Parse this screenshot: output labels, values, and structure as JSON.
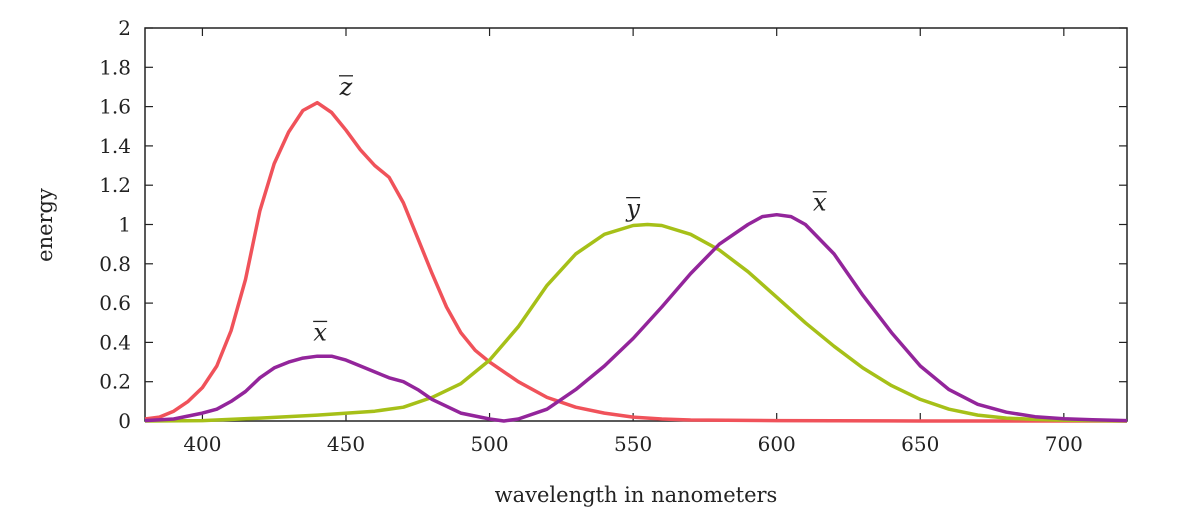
{
  "chart_data": {
    "type": "line",
    "title": "",
    "xlabel": "wavelength in nanometers",
    "ylabel": "energy",
    "xlim": [
      380,
      722
    ],
    "ylim": [
      0,
      2
    ],
    "xticks": [
      400,
      450,
      500,
      550,
      600,
      650,
      700
    ],
    "yticks": [
      0,
      0.2,
      0.4,
      0.6,
      0.8,
      1,
      1.2,
      1.4,
      1.6,
      1.8,
      2
    ],
    "ytick_labels": [
      "0",
      "0.2",
      "0.4",
      "0.6",
      "0.8",
      "1",
      "1.2",
      "1.4",
      "1.6",
      "1.8",
      "2"
    ],
    "grid": false,
    "series": [
      {
        "name": "z-bar",
        "label": "z",
        "color": "#f0525a",
        "x": [
          380,
          385,
          390,
          395,
          400,
          405,
          410,
          415,
          420,
          425,
          430,
          435,
          440,
          445,
          450,
          455,
          460,
          465,
          470,
          475,
          480,
          485,
          490,
          495,
          500,
          510,
          520,
          530,
          540,
          550,
          560,
          570,
          600,
          650,
          722
        ],
        "y": [
          0.01,
          0.02,
          0.05,
          0.1,
          0.17,
          0.28,
          0.46,
          0.72,
          1.07,
          1.31,
          1.47,
          1.58,
          1.62,
          1.57,
          1.48,
          1.38,
          1.3,
          1.24,
          1.11,
          0.93,
          0.75,
          0.58,
          0.45,
          0.36,
          0.3,
          0.2,
          0.12,
          0.07,
          0.04,
          0.02,
          0.01,
          0.005,
          0.002,
          0,
          0
        ],
        "label_at": [
          450,
          1.66
        ]
      },
      {
        "name": "y-bar",
        "label": "y",
        "color": "#a6c018",
        "x": [
          380,
          400,
          420,
          440,
          460,
          470,
          480,
          490,
          500,
          510,
          520,
          530,
          540,
          550,
          555,
          560,
          570,
          580,
          590,
          600,
          610,
          620,
          630,
          640,
          650,
          660,
          670,
          680,
          690,
          700,
          722
        ],
        "y": [
          0,
          0.002,
          0.015,
          0.03,
          0.05,
          0.07,
          0.12,
          0.19,
          0.31,
          0.48,
          0.69,
          0.85,
          0.95,
          0.995,
          1.0,
          0.995,
          0.95,
          0.87,
          0.76,
          0.63,
          0.5,
          0.38,
          0.27,
          0.18,
          0.11,
          0.06,
          0.03,
          0.015,
          0.008,
          0.004,
          0
        ],
        "label_at": [
          550,
          1.04
        ]
      },
      {
        "name": "x-bar",
        "label": "x",
        "color": "#93259b",
        "x": [
          380,
          390,
          400,
          405,
          410,
          415,
          420,
          425,
          430,
          435,
          440,
          445,
          450,
          455,
          460,
          465,
          470,
          475,
          480,
          490,
          500,
          505,
          510,
          520,
          530,
          540,
          550,
          560,
          570,
          580,
          590,
          595,
          600,
          605,
          610,
          620,
          630,
          640,
          650,
          660,
          670,
          680,
          690,
          700,
          710,
          722
        ],
        "y": [
          0.002,
          0.01,
          0.04,
          0.06,
          0.1,
          0.15,
          0.22,
          0.27,
          0.3,
          0.32,
          0.33,
          0.33,
          0.31,
          0.28,
          0.25,
          0.22,
          0.2,
          0.16,
          0.11,
          0.04,
          0.01,
          0.0,
          0.01,
          0.06,
          0.16,
          0.28,
          0.42,
          0.58,
          0.75,
          0.9,
          1.0,
          1.04,
          1.05,
          1.04,
          1.0,
          0.85,
          0.64,
          0.45,
          0.28,
          0.16,
          0.085,
          0.045,
          0.022,
          0.011,
          0.006,
          0.002
        ],
        "label_at": [
          [
            441,
            0.41
          ],
          [
            615,
            1.07
          ]
        ]
      }
    ]
  }
}
